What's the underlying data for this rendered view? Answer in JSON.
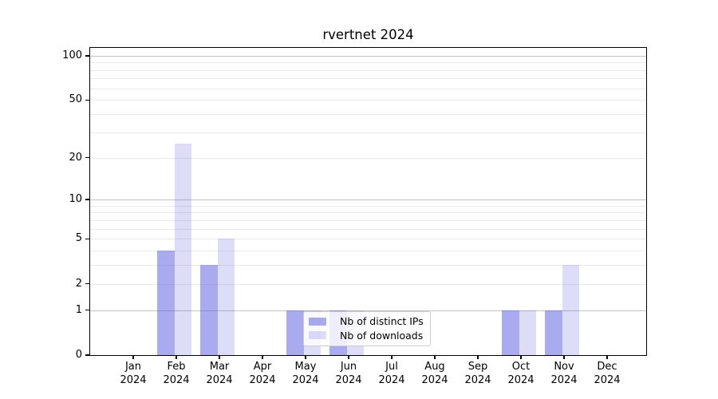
{
  "title": "rvertnet 2024",
  "legend": {
    "items": [
      {
        "label": "Nb of distinct IPs",
        "color": "rgba(85,85,221,0.5)"
      },
      {
        "label": "Nb of downloads",
        "color": "rgba(85,85,221,0.2)"
      }
    ]
  },
  "chart_data": {
    "type": "bar",
    "title": "rvertnet 2024",
    "yscale": "log1p",
    "categories": [
      "Jan",
      "Feb",
      "Mar",
      "Apr",
      "May",
      "Jun",
      "Jul",
      "Aug",
      "Sep",
      "Oct",
      "Nov",
      "Dec"
    ],
    "category_year": "2024",
    "series": [
      {
        "name": "Nb of distinct IPs",
        "color": "rgba(85,85,221,0.5)",
        "values": [
          0,
          4,
          3,
          0,
          1,
          1,
          0,
          0,
          0,
          1,
          1,
          0
        ]
      },
      {
        "name": "Nb of downloads",
        "color": "rgba(85,85,221,0.2)",
        "values": [
          0,
          25,
          5,
          0,
          1,
          1,
          0,
          0,
          0,
          1,
          3,
          0
        ]
      }
    ],
    "yticks": [
      0,
      1,
      2,
      5,
      10,
      20,
      50,
      100
    ],
    "ylim": [
      0,
      113
    ],
    "grid": {
      "major_values": [
        1,
        10,
        100
      ],
      "minor_values": [
        2,
        3,
        4,
        5,
        6,
        7,
        8,
        9,
        20,
        30,
        40,
        50,
        60,
        70,
        80,
        90
      ],
      "major_color": "#c3c3c3",
      "minor_color": "#e9e9e9"
    },
    "legend_position": "lower center-left"
  }
}
